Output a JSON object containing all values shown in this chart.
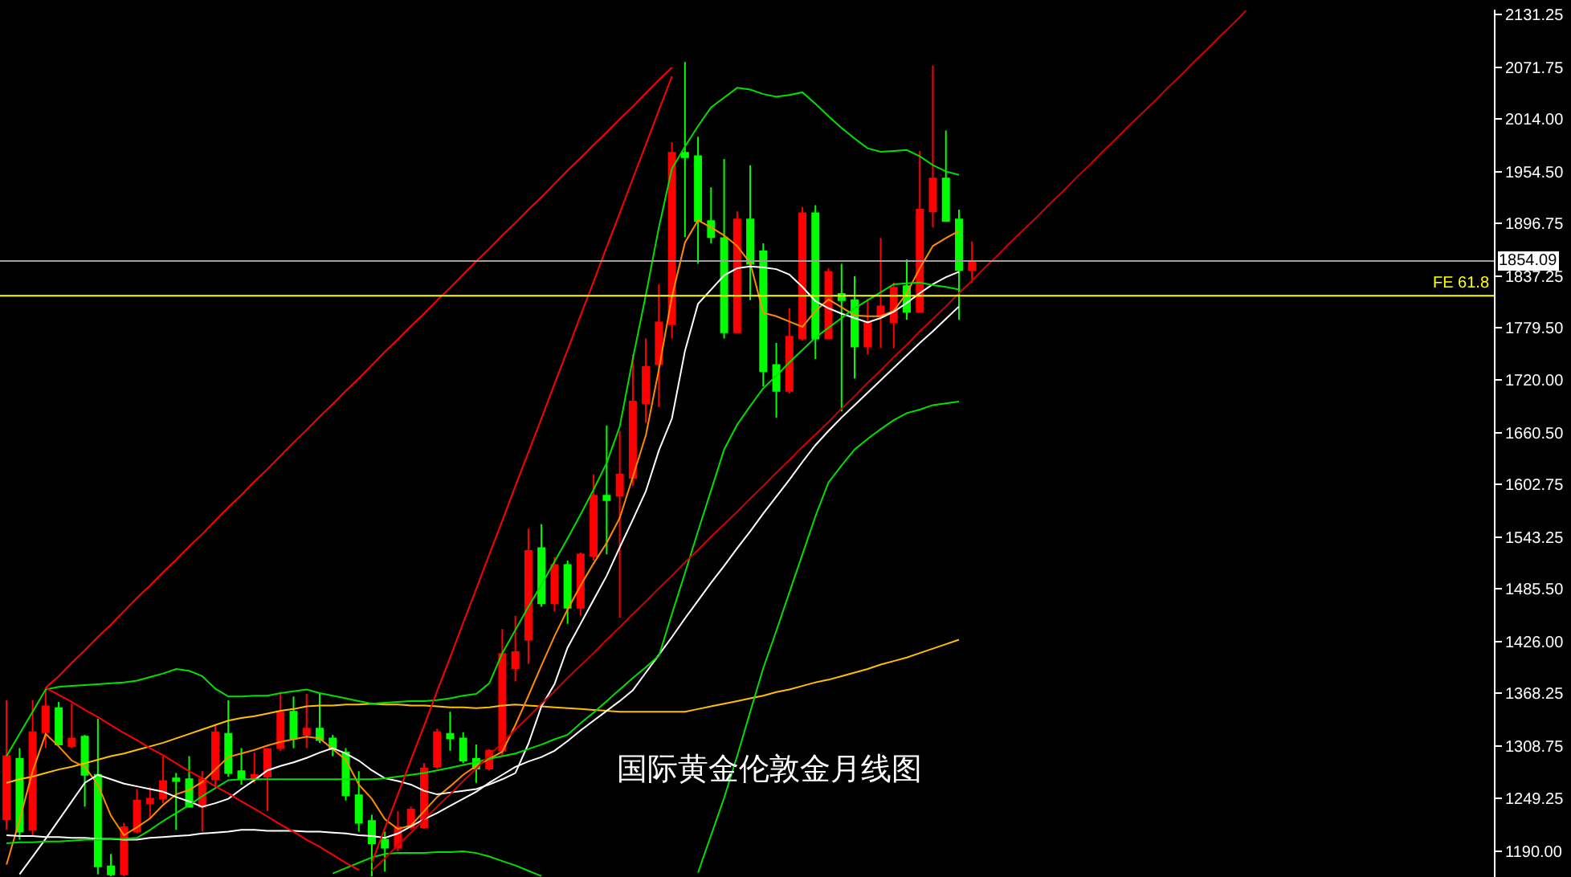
{
  "chart_data": {
    "type": "candlestick",
    "annotations": [
      "国际黄金伦敦金月线图"
    ],
    "categories": [
      null,
      null,
      null,
      null,
      null,
      null,
      null,
      null,
      null,
      null,
      null,
      null,
      null,
      null,
      null,
      null,
      null,
      null,
      null,
      null,
      null,
      null,
      null,
      null,
      null,
      null,
      null,
      null,
      null,
      null,
      null,
      null,
      null,
      null,
      null,
      null,
      null,
      null,
      null,
      null,
      null,
      null,
      null,
      null,
      null,
      null,
      null,
      null,
      null,
      null,
      null,
      null,
      null,
      null,
      null,
      null,
      null,
      null,
      null,
      null,
      null,
      null,
      null,
      null,
      null,
      null,
      null,
      null,
      null,
      null,
      null,
      null,
      null,
      null,
      null,
      null,
      null,
      null,
      null,
      null,
      null,
      null,
      null,
      null,
      null,
      null,
      null,
      null,
      null,
      null,
      null,
      null,
      null,
      null,
      null,
      null,
      null,
      null,
      null,
      null,
      null,
      null,
      null,
      null,
      null,
      null,
      null,
      null,
      null,
      null,
      null,
      null,
      null,
      null,
      null
    ],
    "ohlc": [
      [
        1226,
        1360,
        1214,
        1297
      ],
      [
        1294,
        1306,
        1203,
        1212
      ],
      [
        1214,
        1360,
        1208,
        1324
      ],
      [
        1324,
        1374,
        1306,
        1353
      ],
      [
        1351,
        1358,
        1310,
        1310
      ],
      [
        1308,
        1356,
        1306,
        1317
      ],
      [
        1319,
        1321,
        1240,
        1276
      ],
      [
        1276,
        1339,
        1164,
        1173
      ],
      [
        1173,
        1187,
        1162,
        1164
      ],
      [
        1164,
        1222,
        1162,
        1217
      ],
      [
        1212,
        1260,
        1210,
        1247
      ],
      [
        1244,
        1262,
        1226,
        1249
      ],
      [
        1249,
        1297,
        1244,
        1269
      ],
      [
        1272,
        1278,
        1214,
        1269
      ],
      [
        1271,
        1297,
        1239,
        1240
      ],
      [
        1240,
        1280,
        1212,
        1271
      ],
      [
        1271,
        1333,
        1262,
        1324
      ],
      [
        1322,
        1360,
        1274,
        1278
      ],
      [
        1280,
        1306,
        1265,
        1271
      ],
      [
        1271,
        1301,
        1267,
        1276
      ],
      [
        1274,
        1306,
        1235,
        1305
      ],
      [
        1306,
        1369,
        1303,
        1346
      ],
      [
        1347,
        1364,
        1306,
        1317
      ],
      [
        1321,
        1367,
        1306,
        1328
      ],
      [
        1328,
        1367,
        1312,
        1315
      ],
      [
        1317,
        1321,
        1297,
        1305
      ],
      [
        1301,
        1306,
        1247,
        1253
      ],
      [
        1253,
        1280,
        1212,
        1222
      ],
      [
        1224,
        1231,
        1162,
        1199
      ],
      [
        1203,
        1212,
        1167,
        1194
      ],
      [
        1194,
        1235,
        1190,
        1217
      ],
      [
        1217,
        1240,
        1214,
        1237
      ],
      [
        1217,
        1289,
        1215,
        1283
      ],
      [
        1285,
        1328,
        1283,
        1324
      ],
      [
        1322,
        1347,
        1303,
        1317
      ],
      [
        1317,
        1324,
        1289,
        1292
      ],
      [
        1294,
        1310,
        1267,
        1283
      ],
      [
        1283,
        1305,
        1281,
        1303
      ],
      [
        1303,
        1440,
        1297,
        1412
      ],
      [
        1396,
        1455,
        1381,
        1414
      ],
      [
        1428,
        1553,
        1401,
        1528
      ],
      [
        1531,
        1558,
        1465,
        1469
      ],
      [
        1469,
        1521,
        1460,
        1512
      ],
      [
        1512,
        1517,
        1446,
        1464
      ],
      [
        1464,
        1526,
        1455,
        1524
      ],
      [
        1522,
        1614,
        1517,
        1590
      ],
      [
        1590,
        1669,
        1524,
        1585
      ],
      [
        1590,
        1663,
        1453,
        1614
      ],
      [
        1610,
        1749,
        1601,
        1696
      ],
      [
        1694,
        1767,
        1672,
        1735
      ],
      [
        1738,
        1828,
        1690,
        1785
      ],
      [
        1783,
        1988,
        1767,
        1976
      ],
      [
        1976,
        2078,
        1881,
        1971
      ],
      [
        1972,
        1994,
        1851,
        1899
      ],
      [
        1899,
        1937,
        1874,
        1881
      ],
      [
        1880,
        1969,
        1767,
        1774
      ],
      [
        1774,
        1910,
        1774,
        1901
      ],
      [
        1901,
        1962,
        1810,
        1851
      ],
      [
        1865,
        1874,
        1713,
        1730
      ],
      [
        1737,
        1762,
        1678,
        1708
      ],
      [
        1708,
        1801,
        1705,
        1769
      ],
      [
        1767,
        1915,
        1765,
        1908
      ],
      [
        1908,
        1917,
        1744,
        1767
      ],
      [
        1767,
        1846,
        1767,
        1842
      ],
      [
        1817,
        1851,
        1685,
        1810
      ],
      [
        1810,
        1837,
        1722,
        1758
      ],
      [
        1758,
        1812,
        1749,
        1785
      ],
      [
        1792,
        1880,
        1756,
        1803
      ],
      [
        1785,
        1830,
        1756,
        1824
      ],
      [
        1826,
        1856,
        1788,
        1797
      ],
      [
        1797,
        1978,
        1797,
        1912
      ],
      [
        1910,
        2074,
        1892,
        1947
      ],
      [
        1947,
        2001,
        1899,
        1899
      ],
      [
        1901,
        1912,
        1788,
        1844
      ],
      [
        1844,
        1876,
        1830,
        1854
      ],
      null,
      null,
      null,
      null,
      null,
      null,
      null,
      null,
      null,
      null,
      null,
      null,
      null,
      null,
      null,
      null,
      null,
      null,
      null,
      null,
      null,
      null,
      null,
      null,
      null,
      null,
      null,
      null,
      null,
      null,
      null,
      null,
      null,
      null,
      null,
      null,
      null,
      null,
      null,
      null
    ],
    "colors": [
      "#ff0000",
      "#00ff00",
      "#ff0000",
      "#ff0000",
      "#00ff00",
      "#ff0000",
      "#00ff00",
      "#00ff00",
      "#00ff00",
      "#ff0000",
      "#ff0000",
      "#ff0000",
      "#ff0000",
      "#00ff00",
      "#00ff00",
      "#ff0000",
      "#ff0000",
      "#00ff00",
      "#00ff00",
      "#ff0000",
      "#ff0000",
      "#ff0000",
      "#00ff00",
      "#ff0000",
      "#00ff00",
      "#00ff00",
      "#00ff00",
      "#00ff00",
      "#00ff00",
      "#00ff00",
      "#ff0000",
      "#ff0000",
      "#ff0000",
      "#ff0000",
      "#00ff00",
      "#00ff00",
      "#00ff00",
      "#ff0000",
      "#ff0000",
      "#ff0000",
      "#ff0000",
      "#00ff00",
      "#ff0000",
      "#00ff00",
      "#ff0000",
      "#ff0000",
      "#00ff00",
      "#ff0000",
      "#ff0000",
      "#ff0000",
      "#ff0000",
      "#ff0000",
      "#00ff00",
      "#00ff00",
      "#00ff00",
      "#00ff00",
      "#ff0000",
      "#00ff00",
      "#00ff00",
      "#00ff00",
      "#ff0000",
      "#ff0000",
      "#00ff00",
      "#ff0000",
      "#00ff00",
      "#00ff00",
      "#ff0000",
      "#ff0000",
      "#ff0000",
      "#00ff00",
      "#ff0000",
      "#ff0000",
      "#00ff00",
      "#00ff00",
      "#ff0000",
      null,
      null,
      null,
      null,
      null,
      null,
      null,
      null,
      null,
      null,
      null,
      null,
      null,
      null,
      null,
      null,
      null,
      null,
      null,
      null,
      null,
      null,
      null,
      null,
      null,
      null,
      null,
      null,
      null,
      null,
      null,
      null,
      null,
      null,
      null,
      null,
      null,
      null,
      null,
      null
    ],
    "series": [
      {
        "type": "line",
        "color": "#ffc000",
        "values": [
          1267,
          1271,
          1274,
          1278,
          1282,
          1285,
          1289,
          1293,
          1297,
          1300,
          1304,
          1308,
          1312,
          1317,
          1322,
          1327,
          1332,
          1337,
          1340,
          1342,
          1345,
          1348,
          1350,
          1353,
          1354,
          1354,
          1355,
          1355,
          1356,
          1355,
          1355,
          1354,
          1354,
          1353,
          1352,
          1352,
          1351,
          1352,
          1354,
          1355,
          1354,
          1353,
          1352,
          1351,
          1350,
          1349,
          1348,
          1347,
          1347,
          1347,
          1347,
          1347,
          1347,
          1350,
          1353,
          1356,
          1359,
          1362,
          1365,
          1369,
          1372,
          1376,
          1380,
          1383,
          1387,
          1391,
          1395,
          1400,
          1404,
          1408,
          1413,
          1418,
          1423,
          1428,
          null,
          null,
          null,
          null,
          null,
          null,
          null,
          null,
          null,
          null,
          null,
          null,
          null,
          null,
          null,
          null,
          null,
          null,
          null,
          null,
          null,
          null,
          null,
          null,
          null,
          null,
          null,
          null,
          null,
          null,
          null,
          null,
          null,
          null,
          null,
          null,
          null,
          null,
          null,
          null,
          null
        ]
      },
      {
        "type": "line",
        "color": "#ff8c00",
        "values": [
          1175,
          1225,
          1280,
          1322,
          1308,
          1292,
          1285,
          1265,
          1230,
          1208,
          1217,
          1227,
          1242,
          1254,
          1259,
          1268,
          1282,
          1296,
          1300,
          1304,
          1309,
          1313,
          1316,
          1319,
          1317,
          1305,
          1293,
          1265,
          1249,
          1226,
          1215,
          1219,
          1235,
          1251,
          1263,
          1276,
          1286,
          1294,
          1302,
          1332,
          1365,
          1399,
          1432,
          1462,
          1489,
          1514,
          1537,
          1565,
          1611,
          1658,
          1732,
          1814,
          1875,
          1900,
          1892,
          1883,
          1871,
          1852,
          1796,
          1792,
          1786,
          1780,
          1798,
          1811,
          1802,
          1793,
          1792,
          1792,
          1798,
          1818,
          1846,
          1871,
          1880,
          1888,
          null,
          null,
          null,
          null,
          null,
          null,
          null,
          null,
          null,
          null,
          null,
          null,
          null,
          null,
          null,
          null,
          null,
          null,
          null,
          null,
          null,
          null,
          null,
          null,
          null,
          null,
          null,
          null,
          null,
          null,
          null,
          null,
          null,
          null,
          null,
          null,
          null,
          null,
          null,
          null,
          null
        ]
      },
      {
        "type": "line",
        "color": "#ffffff",
        "values": [
          null,
          1164,
          1184,
          1204,
          1225,
          1246,
          1267,
          1276,
          1271,
          1266,
          1263,
          1260,
          1257,
          1251,
          1246,
          1240,
          1244,
          1249,
          1260,
          1270,
          1281,
          1286,
          1290,
          1295,
          1301,
          1306,
          1300,
          1292,
          1281,
          1272,
          1269,
          1265,
          1258,
          1254,
          1256,
          1258,
          1260,
          1265,
          1271,
          1278,
          1311,
          1353,
          1378,
          1419,
          1446,
          1473,
          1500,
          1532,
          1563,
          1595,
          1641,
          1677,
          1753,
          1806,
          1822,
          1838,
          1846,
          1848,
          1847,
          1845,
          1839,
          1825,
          1809,
          1801,
          1795,
          1790,
          1785,
          1790,
          1797,
          1807,
          1818,
          1828,
          1836,
          1842,
          null,
          null,
          null,
          null,
          null,
          null,
          null,
          null,
          null,
          null,
          null,
          null,
          null,
          null,
          null,
          null,
          null,
          null,
          null,
          null,
          null,
          null,
          null,
          null,
          null,
          null,
          null,
          null,
          null,
          null,
          null,
          null,
          null,
          null,
          null,
          null,
          null,
          null,
          null,
          null,
          null
        ]
      },
      {
        "type": "line",
        "color": "#ffffff",
        "values": [
          1208,
          1207,
          1207,
          1206,
          1206,
          1205,
          1205,
          1204,
          1204,
          1203,
          1203,
          1205,
          1206,
          1207,
          1208,
          1210,
          1211,
          1212,
          1214,
          1214,
          1213,
          1213,
          1213,
          1212,
          1212,
          1211,
          1210,
          1208,
          1207,
          1205,
          1210,
          1218,
          1226,
          1233,
          1241,
          1249,
          1257,
          1267,
          1276,
          1285,
          1291,
          1296,
          1303,
          1314,
          1326,
          1337,
          1348,
          1359,
          1371,
          1391,
          1411,
          1431,
          1452,
          1472,
          1492,
          1511,
          1531,
          1550,
          1570,
          1589,
          1608,
          1628,
          1647,
          1663,
          1678,
          1692,
          1706,
          1720,
          1734,
          1748,
          1762,
          1775,
          1789,
          1803,
          null,
          null,
          null,
          null,
          null,
          null,
          null,
          null,
          null,
          null,
          null,
          null,
          null,
          null,
          null,
          null,
          null,
          null,
          null,
          null,
          null,
          null,
          null,
          null,
          null,
          null,
          null,
          null,
          null,
          null,
          null,
          null,
          null,
          null,
          null,
          null,
          null,
          null,
          null,
          null,
          null
        ]
      },
      {
        "type": "line",
        "color": "#00e000",
        "values": [
          1297,
          1322,
          1347,
          1372,
          1375,
          1376,
          1377,
          1378,
          1379,
          1380,
          1382,
          1386,
          1390,
          1395,
          1393,
          1387,
          1373,
          1364,
          1364,
          1365,
          1365,
          1368,
          1370,
          1372,
          1368,
          1365,
          1362,
          1359,
          1356,
          1357,
          1358,
          1359,
          1359,
          1360,
          1362,
          1365,
          1367,
          1379,
          1413,
          1439,
          1465,
          1490,
          1516,
          1542,
          1569,
          1597,
          1627,
          1668,
          1744,
          1816,
          1892,
          1958,
          1983,
          2006,
          2027,
          2038,
          2049,
          2047,
          2042,
          2039,
          2041,
          2044,
          2031,
          2017,
          2004,
          1992,
          1981,
          1977,
          1978,
          1979,
          1972,
          1962,
          1955,
          1951,
          null,
          null,
          null,
          null,
          null,
          null,
          null,
          null,
          null,
          null,
          null,
          null,
          null,
          null,
          null,
          null,
          null,
          null,
          null,
          null,
          null,
          null,
          null,
          null,
          null,
          null,
          null,
          null,
          null,
          null,
          null,
          null,
          null,
          null,
          null,
          null,
          null,
          null,
          null,
          null,
          null
        ]
      },
      {
        "type": "line",
        "color": "#00e000",
        "values": [
          1199,
          1200,
          1200,
          1201,
          1201,
          1202,
          1203,
          1203,
          1204,
          1204,
          1205,
          1214,
          1224,
          1233,
          1242,
          1252,
          1261,
          1270,
          1271,
          1271,
          1271,
          1271,
          1271,
          1271,
          1271,
          1271,
          1271,
          1271,
          1271,
          1272,
          1274,
          1276,
          1278,
          1281,
          1284,
          1287,
          1290,
          1294,
          1297,
          1300,
          1305,
          1310,
          1316,
          1321,
          1334,
          1346,
          1359,
          1372,
          1385,
          1397,
          1410,
          1457,
          1503,
          1550,
          1596,
          1642,
          1670,
          1691,
          1711,
          1725,
          1740,
          1754,
          1768,
          1779,
          1790,
          1801,
          1810,
          1819,
          1828,
          1829,
          1830,
          1827,
          1825,
          1822,
          null,
          null,
          null,
          null,
          null,
          null,
          null,
          null,
          null,
          null,
          null,
          null,
          null,
          null,
          null,
          null,
          null,
          null,
          null,
          null,
          null,
          null,
          null,
          null,
          null,
          null,
          null,
          null,
          null,
          null,
          null,
          null,
          null,
          null,
          null,
          null,
          null,
          null,
          null,
          null,
          null
        ]
      },
      {
        "type": "line",
        "color": "#00e000",
        "values": [
          null,
          null,
          null,
          null,
          null,
          null,
          null,
          null,
          null,
          null,
          null,
          null,
          null,
          null,
          null,
          null,
          null,
          null,
          null,
          null,
          null,
          null,
          null,
          null,
          null,
          null,
          null,
          null,
          null,
          null,
          null,
          null,
          null,
          null,
          null,
          null,
          null,
          null,
          null,
          null,
          null,
          null,
          null,
          null,
          null,
          null,
          null,
          null,
          null,
          null,
          null,
          null,
          null,
          1166,
          1208,
          1250,
          1297,
          1347,
          1396,
          1438,
          1481,
          1524,
          1567,
          1605,
          1624,
          1642,
          1654,
          1665,
          1675,
          1683,
          1687,
          1692,
          1694,
          1696,
          null,
          null,
          null,
          null,
          null,
          null,
          null,
          null,
          null,
          null,
          null,
          null,
          null,
          null,
          null,
          null,
          null,
          null,
          null,
          null,
          null,
          null,
          null,
          null,
          null,
          null,
          null,
          null,
          null,
          null,
          null,
          null,
          null,
          null,
          null,
          null,
          null,
          null,
          null,
          null,
          null
        ]
      },
      {
        "type": "line",
        "color": "#00e000",
        "values": [
          null,
          null,
          null,
          null,
          null,
          null,
          null,
          null,
          null,
          null,
          null,
          null,
          null,
          null,
          null,
          null,
          null,
          null,
          null,
          null,
          null,
          null,
          null,
          null,
          null,
          1165,
          1171,
          1177,
          1183,
          1187,
          1188,
          1188,
          1188,
          1189,
          1189,
          1190,
          1188,
          1184,
          1179,
          1174,
          1168,
          1162,
          null,
          null,
          null,
          null,
          null,
          null,
          null,
          null,
          null,
          null,
          null,
          null,
          null,
          null,
          null,
          null,
          null,
          null,
          null,
          null,
          null,
          null,
          null,
          null,
          null,
          null,
          null,
          null,
          null,
          null,
          null,
          null,
          null,
          null,
          null,
          null,
          null,
          null,
          null,
          null,
          null,
          null,
          null,
          null,
          null,
          null,
          null,
          null,
          null,
          null,
          null,
          null,
          null,
          null,
          null,
          null,
          null,
          null,
          null,
          null,
          null,
          null,
          null,
          null,
          null,
          null,
          null,
          null,
          null,
          null,
          null,
          null,
          null
        ]
      },
      {
        "type": "line",
        "color": "#ff0000",
        "values": [
          null,
          null,
          null,
          1374,
          1387,
          1402,
          1416,
          1431,
          1445,
          1460,
          1475,
          1489,
          1504,
          1518,
          1533,
          1547,
          1562,
          1577,
          1591,
          1606,
          1620,
          1635,
          1650,
          1664,
          1679,
          1693,
          1708,
          1722,
          1737,
          1752,
          1766,
          1781,
          1795,
          1810,
          1824,
          1839,
          1854,
          1868,
          1883,
          1897,
          1912,
          1926,
          1941,
          1956,
          1970,
          1985,
          1999,
          2014,
          2028,
          2043,
          2058,
          2072,
          null,
          null,
          null,
          null,
          null,
          null,
          null,
          null,
          null,
          null,
          null,
          null,
          null,
          null,
          null,
          null,
          null,
          null,
          null,
          null,
          null,
          null,
          null,
          null,
          null,
          null,
          null,
          null,
          null,
          null,
          null,
          null,
          null,
          null,
          null,
          null,
          null,
          null,
          null,
          null,
          null,
          null,
          null,
          null,
          null,
          null,
          null,
          null,
          null,
          null,
          null,
          null,
          null,
          null,
          null,
          null,
          null,
          null,
          null,
          null,
          null,
          null,
          null
        ]
      },
      {
        "type": "line",
        "color": "#ff0000",
        "values": [
          null,
          null,
          null,
          null,
          null,
          null,
          null,
          null,
          null,
          null,
          null,
          null,
          null,
          null,
          null,
          null,
          null,
          null,
          null,
          null,
          null,
          null,
          null,
          null,
          null,
          null,
          null,
          null,
          1177,
          1216,
          1254,
          1293,
          1331,
          1370,
          1408,
          1447,
          1485,
          1524,
          1562,
          1601,
          1639,
          1677,
          1716,
          1754,
          1793,
          1831,
          1870,
          1908,
          1947,
          1985,
          2024,
          2062,
          null,
          null,
          null,
          null,
          null,
          null,
          null,
          null,
          null,
          null,
          null,
          null,
          null,
          null,
          null,
          null,
          null,
          null,
          null,
          null,
          null,
          null,
          null,
          null,
          null,
          null,
          null,
          null,
          null,
          null,
          null,
          null,
          null,
          null,
          null,
          null,
          null,
          null,
          null,
          null,
          null,
          null,
          null,
          null,
          null,
          null,
          null,
          null,
          null,
          null,
          null,
          null,
          null,
          null,
          null,
          null,
          null,
          null,
          null,
          null,
          null,
          null,
          null
        ]
      },
      {
        "type": "line",
        "color": "#ff0000",
        "values": [
          null,
          null,
          null,
          1374,
          1366,
          1358,
          1349,
          1341,
          1332,
          1323,
          1315,
          1306,
          1298,
          1289,
          1280,
          1272,
          1263,
          1255,
          1246,
          1238,
          1229,
          1220,
          1212,
          1203,
          1195,
          1186,
          1177,
          1169,
          null,
          null,
          null,
          null,
          null,
          null,
          null,
          null,
          null,
          null,
          null,
          null,
          null,
          null,
          null,
          null,
          null,
          null,
          null,
          null,
          null,
          null,
          null,
          null,
          null,
          null,
          null,
          null,
          null,
          null,
          null,
          null,
          null,
          null,
          null,
          null,
          null,
          null,
          null,
          null,
          null,
          null,
          null,
          null,
          null,
          null,
          null,
          null,
          null,
          null,
          null,
          null,
          null,
          null,
          null,
          null,
          null,
          null,
          null,
          null,
          null,
          null,
          null,
          null,
          null,
          null,
          null,
          null,
          null,
          null,
          null,
          null,
          null,
          null,
          null,
          null,
          null,
          null,
          null,
          null,
          null,
          null,
          null,
          null,
          null,
          null,
          null
        ]
      },
      {
        "type": "line",
        "color": "#d00000",
        "values": [
          null,
          null,
          null,
          null,
          null,
          null,
          null,
          null,
          null,
          null,
          null,
          null,
          null,
          null,
          null,
          null,
          null,
          null,
          null,
          null,
          null,
          null,
          null,
          null,
          null,
          null,
          null,
          null,
          1168,
          1182,
          1197,
          1211,
          1226,
          1240,
          1254,
          1269,
          1283,
          1298,
          1312,
          1327,
          1341,
          1356,
          1370,
          1385,
          1399,
          1413,
          1428,
          1442,
          1457,
          1471,
          1486,
          1500,
          1515,
          1529,
          1544,
          1558,
          1572,
          1587,
          1601,
          1616,
          1630,
          1645,
          1659,
          1673,
          1688,
          1702,
          1717,
          1731,
          1746,
          1760,
          1775,
          1789,
          1803,
          1818,
          1832,
          1847,
          1861,
          1876,
          1890,
          1904,
          1919,
          1933,
          1948,
          1962,
          1977,
          1991,
          2006,
          2020,
          2034,
          2049,
          2063,
          2078,
          2092,
          2107,
          2121,
          2136,
          null,
          null,
          null,
          null,
          null,
          null,
          null,
          null,
          null,
          null,
          null,
          null,
          null,
          null,
          null,
          null,
          null,
          null,
          null
        ]
      }
    ],
    "ref_lines": [
      {
        "axis": "y",
        "value": 1854.09,
        "label": "1854.09",
        "color": "#a0a0a0"
      },
      {
        "axis": "y",
        "value": 1815,
        "label": "FE 61.8",
        "color": "#ffff00"
      }
    ],
    "ylim": [
      1161,
      2137
    ],
    "yticks": [
      {
        "value": 2131.25,
        "label": "2131.25"
      },
      {
        "value": 2071.75,
        "label": "2071.75"
      },
      {
        "value": 2014,
        "label": "2014.00"
      },
      {
        "value": 1954.5,
        "label": "1954.50"
      },
      {
        "value": 1896.75,
        "label": "1896.75"
      },
      {
        "value": 1837.25,
        "label": "1837.25"
      },
      {
        "value": 1779.5,
        "label": "1779.50"
      },
      {
        "value": 1720,
        "label": "1720.00"
      },
      {
        "value": 1660.5,
        "label": "1660.50"
      },
      {
        "value": 1602.75,
        "label": "1602.75"
      },
      {
        "value": 1543.25,
        "label": "1543.25"
      },
      {
        "value": 1485.5,
        "label": "1485.50"
      },
      {
        "value": 1426,
        "label": "1426.00"
      },
      {
        "value": 1368.25,
        "label": "1368.25"
      },
      {
        "value": 1308.75,
        "label": "1308.75"
      },
      {
        "value": 1249.25,
        "label": "1249.25"
      },
      {
        "value": 1190,
        "label": "1190.00"
      }
    ],
    "tick_labels": "y"
  }
}
